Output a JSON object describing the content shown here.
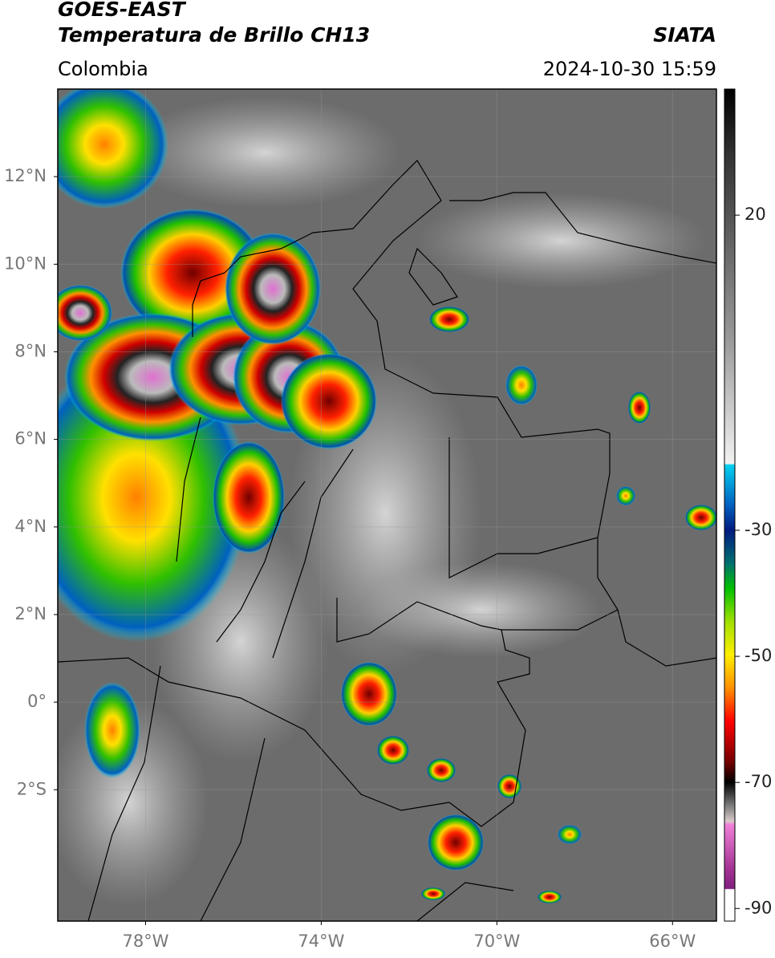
{
  "header": {
    "title": "GOES-EAST",
    "subtitle": "Temperatura de Brillo CH13",
    "source": "SIATA",
    "region": "Colombia",
    "datetime": "2024-10-30 15:59"
  },
  "map": {
    "xlim": [
      -80,
      -65
    ],
    "ylim": [
      -5,
      14
    ],
    "xticks": [
      {
        "value": -78,
        "label": "78°W"
      },
      {
        "value": -74,
        "label": "74°W"
      },
      {
        "value": -70,
        "label": "70°W"
      },
      {
        "value": -66,
        "label": "66°W"
      }
    ],
    "yticks": [
      {
        "value": 12,
        "label": "12°N"
      },
      {
        "value": 10,
        "label": "10°N"
      },
      {
        "value": 8,
        "label": "8°N"
      },
      {
        "value": 6,
        "label": "6°N"
      },
      {
        "value": 4,
        "label": "4°N"
      },
      {
        "value": 2,
        "label": "2°N"
      },
      {
        "value": 0,
        "label": "0°"
      },
      {
        "value": -2,
        "label": "2°S"
      }
    ],
    "grid": true
  },
  "colorbar": {
    "lim": [
      -92,
      40
    ],
    "ticks": [
      20,
      -30,
      -50,
      -70,
      -90
    ]
  }
}
